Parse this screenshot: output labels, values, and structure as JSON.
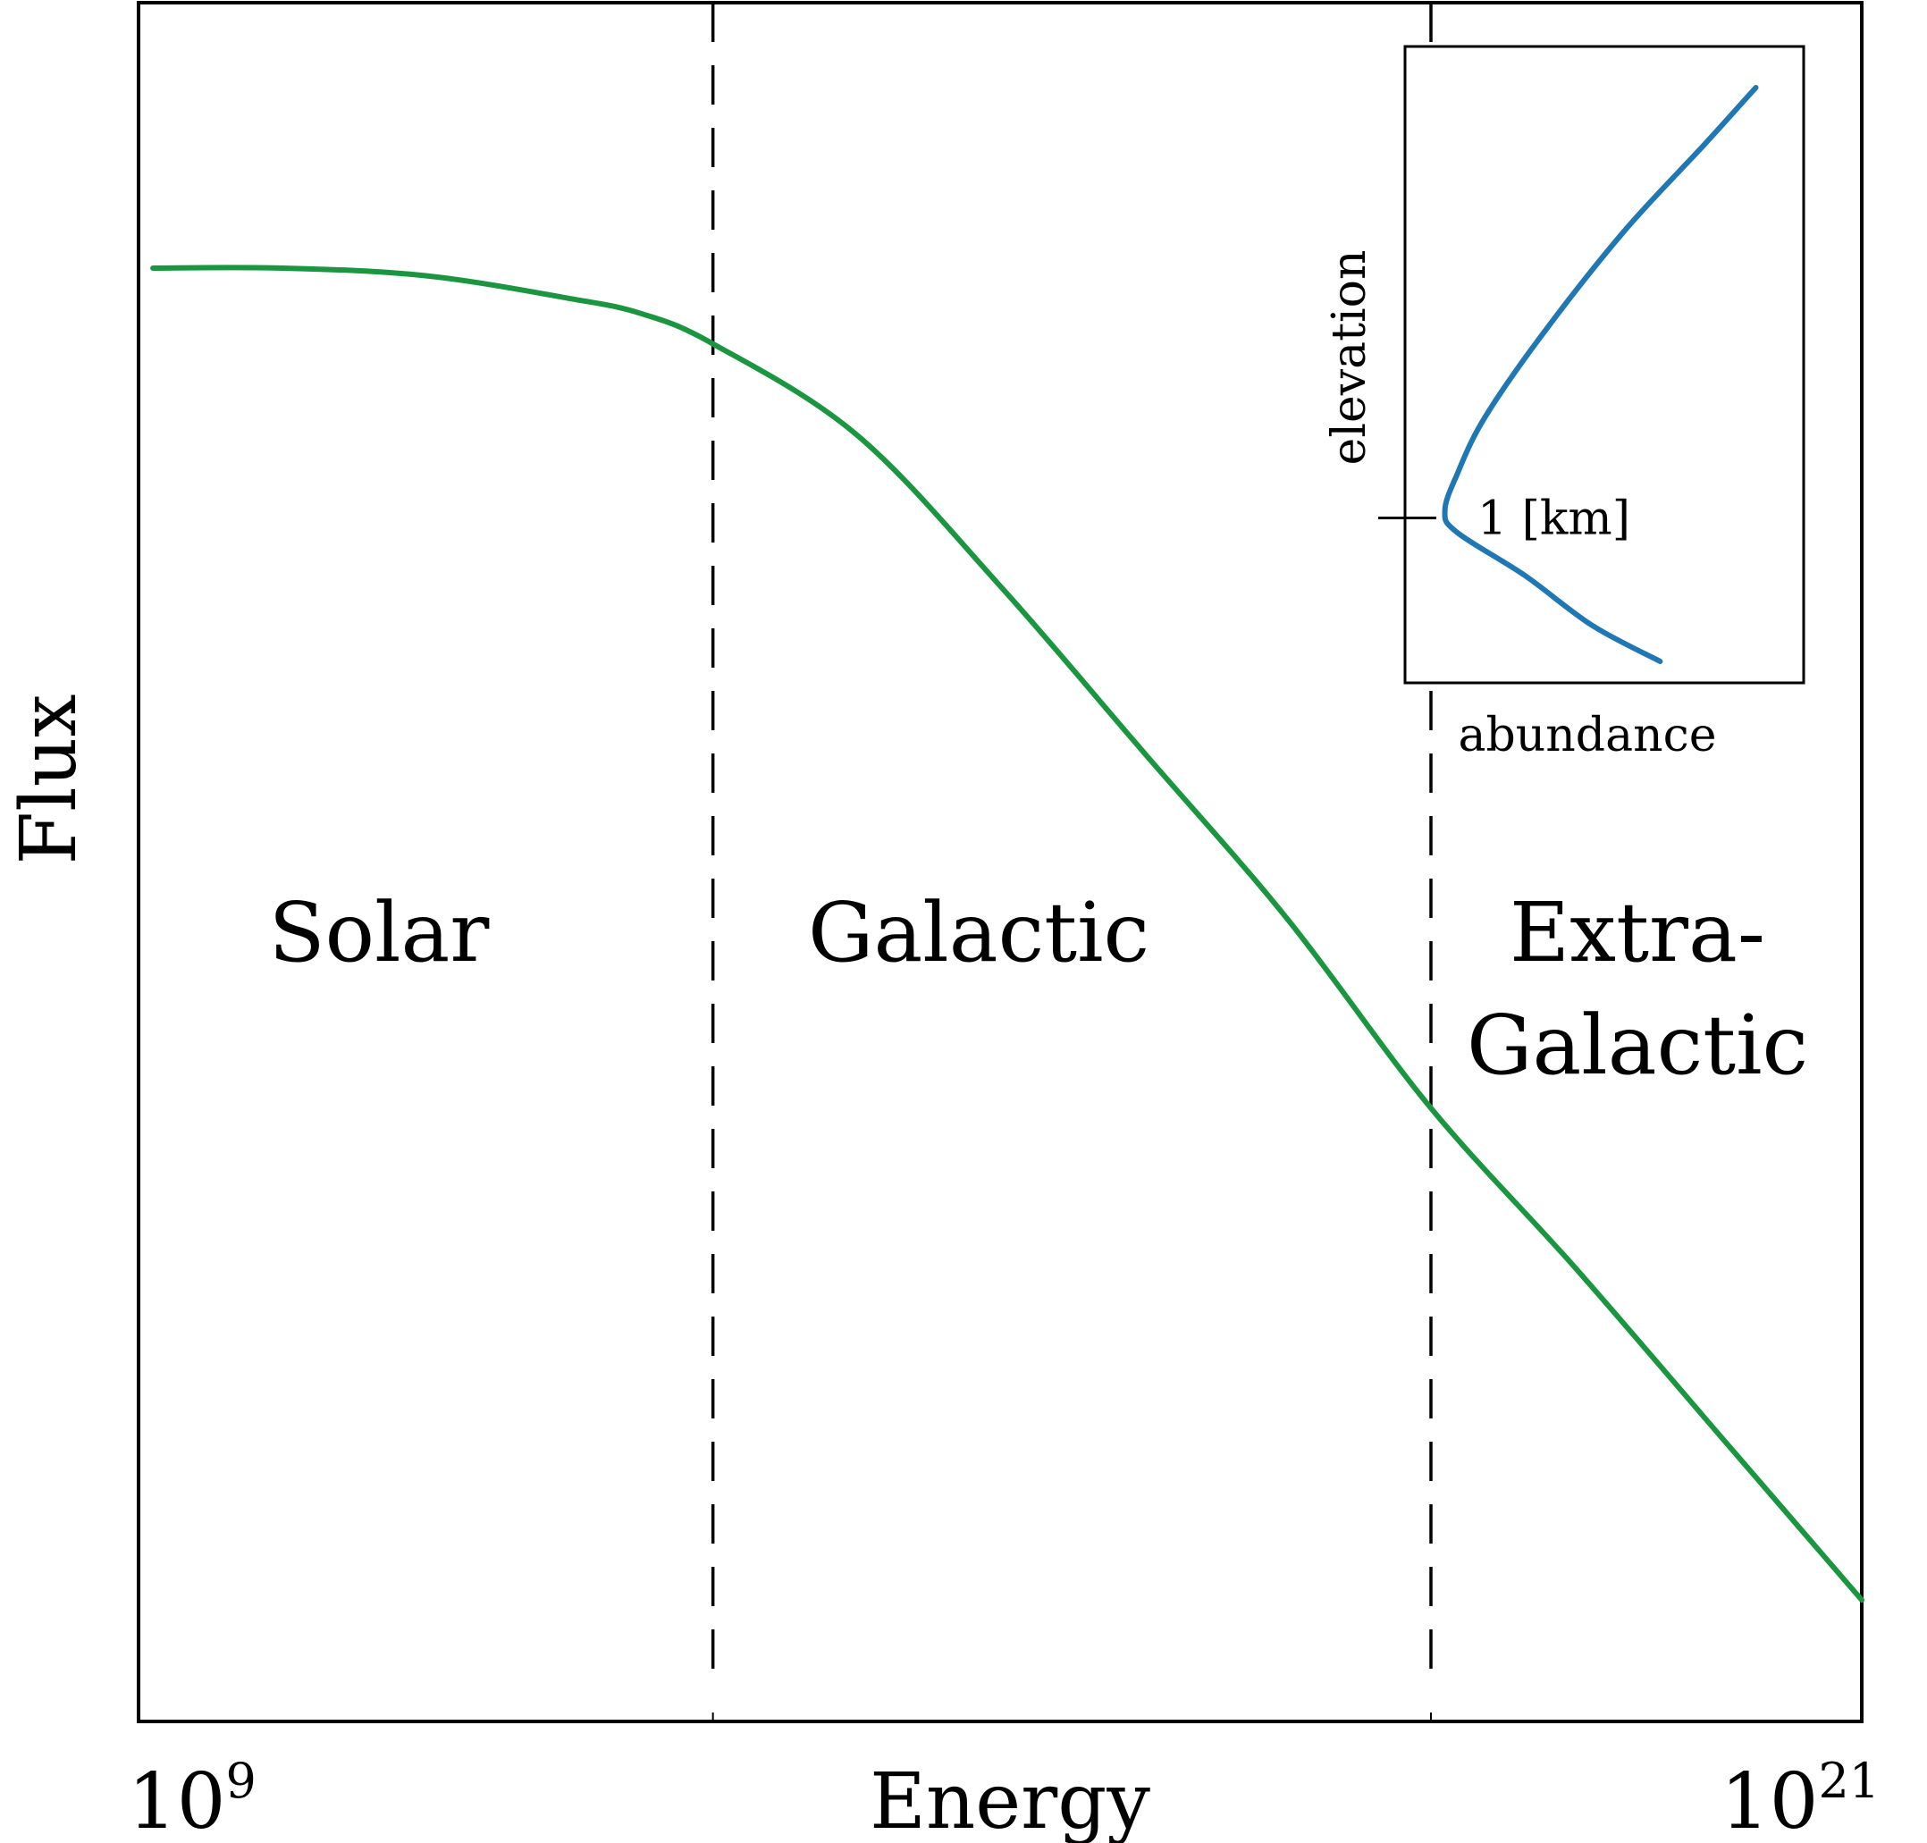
{
  "chart_data": [
    {
      "type": "line",
      "xlabel": "Energy",
      "ylabel": "Flux",
      "x_scale": "log",
      "x_tick_labels": [
        {
          "base": "10",
          "exponent": "9"
        },
        {
          "base": "10",
          "exponent": "21"
        }
      ],
      "xlim": [
        9,
        21
      ],
      "y_axis_values_shown": false,
      "boundaries": [
        13,
        18
      ],
      "region_labels": [
        {
          "lines": [
            "Solar"
          ]
        },
        {
          "lines": [
            "Galactic"
          ]
        },
        {
          "lines": [
            "Extra-",
            "Galactic"
          ]
        }
      ],
      "series": [
        {
          "color": "#1a9641",
          "x": [
            9.1,
            10,
            11,
            12,
            12.5,
            13,
            14,
            15,
            16,
            17,
            18,
            19,
            20,
            21
          ],
          "y": [
            0.89,
            0.89,
            0.885,
            0.87,
            0.86,
            0.84,
            0.78,
            0.68,
            0.57,
            0.46,
            0.335,
            0.23,
            0.12,
            0.01
          ]
        }
      ]
    },
    {
      "type": "line",
      "inset": true,
      "xlabel": "abundance",
      "ylabel": "elevation",
      "y_tick": {
        "value": 1,
        "label": "1 [km]"
      },
      "series": [
        {
          "color": "#1f77b4",
          "x": [
            0.64,
            0.47,
            0.3,
            0.13,
            0.1,
            0.13,
            0.2,
            0.35,
            0.55,
            0.75,
            0.88
          ],
          "y": [
            0.0,
            0.25,
            0.6,
            0.9,
            1.05,
            1.3,
            1.7,
            2.3,
            3.0,
            3.6,
            4.0
          ]
        }
      ]
    }
  ]
}
